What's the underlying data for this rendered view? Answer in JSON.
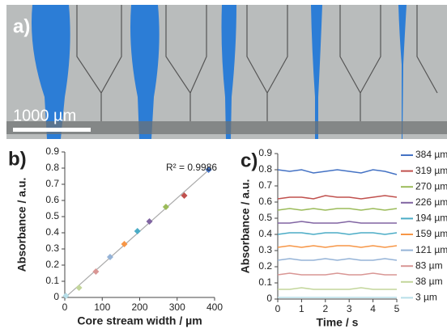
{
  "panel_a": {
    "label": "a)",
    "scale_bar": "1000 µm"
  },
  "chart_data": [
    {
      "type": "scatter",
      "panel_label": "b)",
      "x_label": "Core stream width / µm",
      "y_label": "Absorbance / a.u.",
      "annotation": "R² = 0.9986",
      "x": [
        3,
        38,
        83,
        121,
        159,
        194,
        226,
        270,
        319,
        384
      ],
      "values": [
        0.01,
        0.06,
        0.16,
        0.25,
        0.33,
        0.41,
        0.47,
        0.56,
        0.63,
        0.79
      ],
      "colors": [
        "#b7dee8",
        "#c3d69b",
        "#d99694",
        "#95b3d7",
        "#f79646",
        "#4bacc6",
        "#8064a2",
        "#9bbb59",
        "#c0504d",
        "#4472c4"
      ],
      "xlim": [
        0,
        400
      ],
      "xticks": [
        0,
        100,
        200,
        300,
        400
      ],
      "ylim": [
        0,
        0.9
      ],
      "yticks": [
        0,
        0.1,
        0.2,
        0.3,
        0.4,
        0.5,
        0.6,
        0.7,
        0.8,
        0.9
      ]
    },
    {
      "type": "line",
      "panel_label": "c)",
      "x_label": "Time / s",
      "y_label": "Absorbance / a.u.",
      "x": [
        0,
        0.5,
        1,
        1.5,
        2,
        2.5,
        3,
        3.5,
        4,
        4.5,
        5
      ],
      "series": [
        {
          "name": "384 µm",
          "color": "#4472c4",
          "values": [
            0.8,
            0.79,
            0.8,
            0.78,
            0.79,
            0.8,
            0.79,
            0.78,
            0.8,
            0.79,
            0.77
          ]
        },
        {
          "name": "319 µm",
          "color": "#c0504d",
          "values": [
            0.62,
            0.63,
            0.63,
            0.62,
            0.64,
            0.63,
            0.63,
            0.62,
            0.63,
            0.64,
            0.63
          ]
        },
        {
          "name": "270 µm",
          "color": "#9bbb59",
          "values": [
            0.55,
            0.56,
            0.55,
            0.56,
            0.55,
            0.56,
            0.56,
            0.55,
            0.56,
            0.55,
            0.56
          ]
        },
        {
          "name": "226 µm",
          "color": "#8064a2",
          "values": [
            0.47,
            0.47,
            0.48,
            0.47,
            0.47,
            0.47,
            0.48,
            0.47,
            0.47,
            0.47,
            0.47
          ]
        },
        {
          "name": "194 µm",
          "color": "#4bacc6",
          "values": [
            0.4,
            0.41,
            0.41,
            0.4,
            0.41,
            0.41,
            0.4,
            0.41,
            0.41,
            0.4,
            0.41
          ]
        },
        {
          "name": "159 µm",
          "color": "#f79646",
          "values": [
            0.32,
            0.33,
            0.32,
            0.33,
            0.32,
            0.33,
            0.33,
            0.32,
            0.33,
            0.32,
            0.33
          ]
        },
        {
          "name": "121 µm",
          "color": "#95b3d7",
          "values": [
            0.24,
            0.25,
            0.24,
            0.24,
            0.25,
            0.24,
            0.25,
            0.24,
            0.24,
            0.25,
            0.24
          ]
        },
        {
          "name": "83 µm",
          "color": "#d99694",
          "values": [
            0.15,
            0.16,
            0.15,
            0.15,
            0.15,
            0.16,
            0.15,
            0.15,
            0.16,
            0.15,
            0.15
          ]
        },
        {
          "name": "38 µm",
          "color": "#c3d69b",
          "values": [
            0.06,
            0.06,
            0.07,
            0.06,
            0.06,
            0.06,
            0.06,
            0.07,
            0.06,
            0.06,
            0.06
          ]
        },
        {
          "name": "3 µm",
          "color": "#b7dee8",
          "values": [
            0.01,
            0.01,
            0.01,
            0.01,
            0.01,
            0.01,
            0.01,
            0.01,
            0.01,
            0.01,
            0.01
          ]
        }
      ],
      "xlim": [
        0,
        5
      ],
      "xticks": [
        0,
        1,
        2,
        3,
        4,
        5
      ],
      "ylim": [
        0,
        0.9
      ],
      "yticks": [
        0,
        0.1,
        0.2,
        0.3,
        0.4,
        0.5,
        0.6,
        0.7,
        0.8,
        0.9
      ]
    }
  ]
}
